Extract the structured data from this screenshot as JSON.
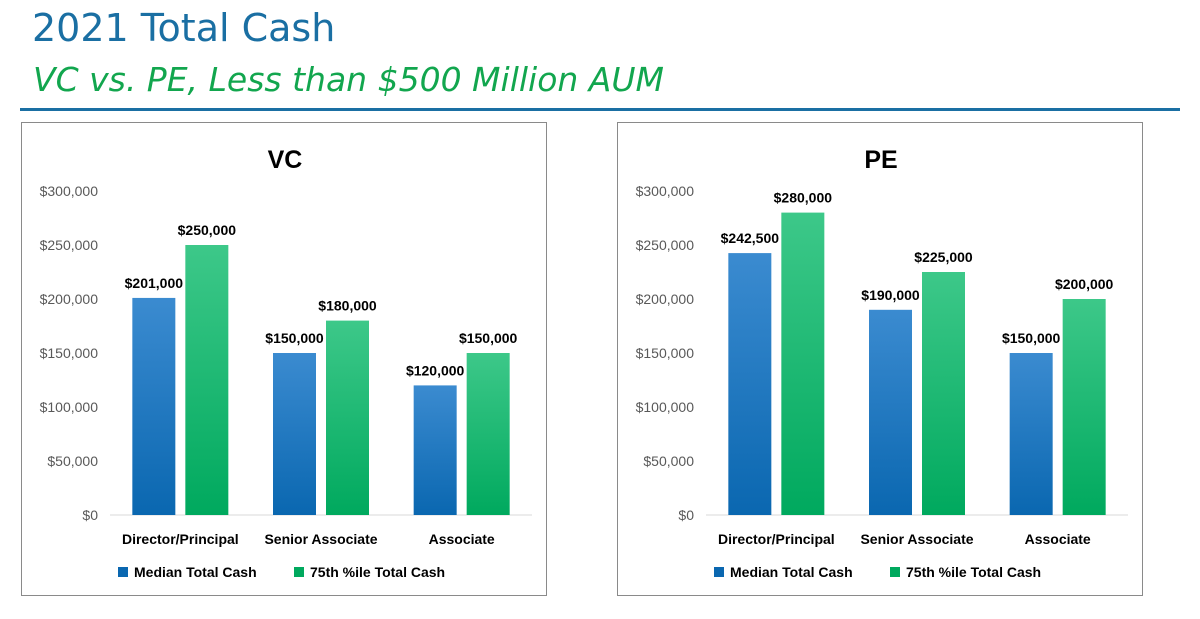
{
  "header": {
    "title": "2021 Total Cash",
    "subtitle": "VC vs. PE, Less than $500 Million AUM"
  },
  "colors": {
    "title": "#1a6fa3",
    "subtitle": "#12a64e",
    "median_top": "#3b8bd0",
    "median_bottom": "#0a67b0",
    "p75_top": "#3dc889",
    "p75_bottom": "#00a95e"
  },
  "chart_data": [
    {
      "type": "bar",
      "title": "VC",
      "categories": [
        "Director/Principal",
        "Senior Associate",
        "Associate"
      ],
      "series": [
        {
          "name": "Median Total Cash",
          "values": [
            201000,
            150000,
            120000
          ],
          "labels": [
            "$201,000",
            "$150,000",
            "$120,000"
          ]
        },
        {
          "name": "75th %ile Total Cash",
          "values": [
            250000,
            180000,
            150000
          ],
          "labels": [
            "$250,000",
            "$180,000",
            "$150,000"
          ]
        }
      ],
      "ylim": [
        0,
        300000
      ],
      "yticks": [
        0,
        50000,
        100000,
        150000,
        200000,
        250000,
        300000
      ],
      "ytick_labels": [
        "$0",
        "$50,000",
        "$100,000",
        "$150,000",
        "$200,000",
        "$250,000",
        "$300,000"
      ],
      "xlabel": "",
      "ylabel": "",
      "grid": false,
      "legend": "bottom"
    },
    {
      "type": "bar",
      "title": "PE",
      "categories": [
        "Director/Principal",
        "Senior Associate",
        "Associate"
      ],
      "series": [
        {
          "name": "Median Total Cash",
          "values": [
            242500,
            190000,
            150000
          ],
          "labels": [
            "$242,500",
            "$190,000",
            "$150,000"
          ]
        },
        {
          "name": "75th %ile Total Cash",
          "values": [
            280000,
            225000,
            200000
          ],
          "labels": [
            "$280,000",
            "$225,000",
            "$200,000"
          ]
        }
      ],
      "ylim": [
        0,
        300000
      ],
      "yticks": [
        0,
        50000,
        100000,
        150000,
        200000,
        250000,
        300000
      ],
      "ytick_labels": [
        "$0",
        "$50,000",
        "$100,000",
        "$150,000",
        "$200,000",
        "$250,000",
        "$300,000"
      ],
      "xlabel": "",
      "ylabel": "",
      "grid": false,
      "legend": "bottom"
    }
  ]
}
